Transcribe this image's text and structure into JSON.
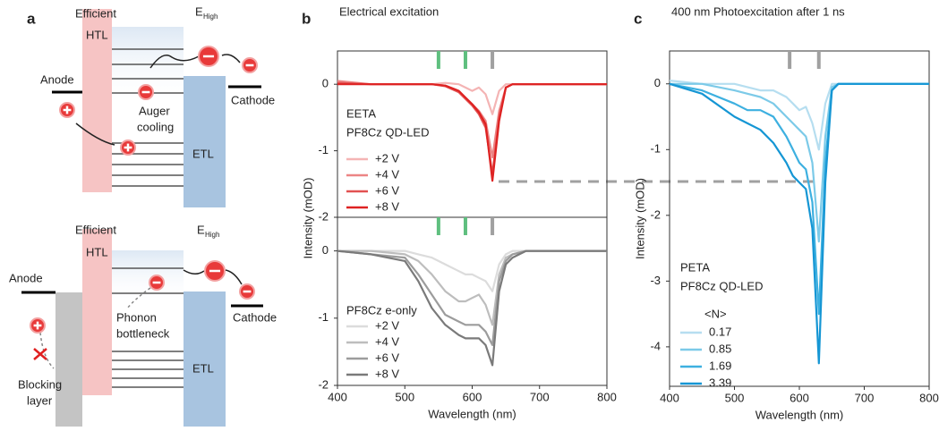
{
  "diagram": {
    "label": "a",
    "top": {
      "htl": [
        "Efficient",
        "HTL"
      ],
      "energy": "E",
      "energy_sub": "High",
      "anode": "Anode",
      "cathode": "Cathode",
      "process": [
        "Auger",
        "cooling"
      ],
      "etl": "ETL"
    },
    "bottom": {
      "htl": [
        "Efficient",
        "HTL"
      ],
      "energy": "E",
      "energy_sub": "High",
      "anode": "Anode",
      "cathode": "Cathode",
      "process": [
        "Phonon",
        "bottleneck"
      ],
      "etl": "ETL",
      "blocking": [
        "Blocking",
        "layer"
      ]
    }
  },
  "chart_data": [
    {
      "type": "line",
      "label": "b",
      "title": "Electrical excitation",
      "ylabel": "Intensity (mOD)",
      "annotation": [
        "EETA",
        "PF8Cz QD-LED"
      ],
      "x": [
        400,
        450,
        500,
        520,
        540,
        560,
        580,
        590,
        600,
        610,
        620,
        630,
        640,
        650,
        660,
        680,
        700,
        750,
        800
      ],
      "xlim": [
        400,
        800
      ],
      "ylim": [
        -2,
        0.5
      ],
      "yticks": [
        -2,
        -1,
        0
      ],
      "markers": [
        {
          "x": 550,
          "color": "#5fbf7f"
        },
        {
          "x": 590,
          "color": "#5fbf7f"
        },
        {
          "x": 630,
          "color": "#a0a0a0"
        }
      ],
      "series": [
        {
          "name": "+2 V",
          "color": "#f4b4b4",
          "values": [
            0.02,
            0,
            0,
            0,
            0,
            0.02,
            0,
            -0.05,
            -0.1,
            -0.05,
            -0.15,
            -0.45,
            -0.1,
            0,
            0,
            0,
            0,
            0,
            0
          ]
        },
        {
          "name": "+4 V",
          "color": "#ec8585",
          "values": [
            0.05,
            0,
            0,
            0,
            0,
            -0.02,
            -0.1,
            -0.2,
            -0.3,
            -0.4,
            -0.55,
            -1.1,
            -0.4,
            -0.05,
            0,
            0,
            0,
            0,
            0
          ]
        },
        {
          "name": "+6 V",
          "color": "#e25252",
          "values": [
            0.02,
            0,
            0,
            0,
            0,
            -0.03,
            -0.12,
            -0.22,
            -0.32,
            -0.45,
            -0.65,
            -1.35,
            -0.5,
            -0.05,
            0,
            0,
            0,
            0,
            0
          ]
        },
        {
          "name": "+8 V",
          "color": "#de2222",
          "values": [
            0,
            0,
            0,
            0,
            0,
            -0.02,
            -0.1,
            -0.2,
            -0.3,
            -0.42,
            -0.6,
            -1.45,
            -0.55,
            -0.05,
            0,
            0,
            0,
            0,
            0
          ]
        }
      ]
    },
    {
      "type": "line",
      "xlabel": "Wavelength (nm)",
      "annotation": [
        "PF8Cz e-only"
      ],
      "x": [
        400,
        450,
        500,
        520,
        540,
        560,
        580,
        590,
        600,
        610,
        620,
        630,
        640,
        650,
        660,
        680,
        700,
        750,
        800
      ],
      "xlim": [
        400,
        800
      ],
      "ylim": [
        -2,
        0.5
      ],
      "xticks": [
        400,
        500,
        600,
        700,
        800
      ],
      "yticks": [
        -2,
        -1,
        0
      ],
      "markers": [
        {
          "x": 550,
          "color": "#5fbf7f"
        },
        {
          "x": 590,
          "color": "#5fbf7f"
        },
        {
          "x": 630,
          "color": "#a0a0a0"
        }
      ],
      "series": [
        {
          "name": "+2 V",
          "color": "#dcdcdc",
          "values": [
            0,
            0,
            0,
            -0.05,
            -0.1,
            -0.2,
            -0.3,
            -0.35,
            -0.35,
            -0.4,
            -0.45,
            -0.6,
            -0.2,
            -0.05,
            0,
            0,
            0,
            0,
            0
          ]
        },
        {
          "name": "+4 V",
          "color": "#bdbdbd",
          "values": [
            0,
            0,
            -0.05,
            -0.15,
            -0.35,
            -0.6,
            -0.75,
            -0.75,
            -0.7,
            -0.65,
            -0.8,
            -1.1,
            -0.35,
            -0.1,
            -0.05,
            0,
            0,
            0,
            0
          ]
        },
        {
          "name": "+6 V",
          "color": "#9c9c9c",
          "values": [
            0,
            -0.05,
            -0.1,
            -0.35,
            -0.65,
            -0.95,
            -1.05,
            -1.1,
            -1.1,
            -1.1,
            -1.2,
            -1.4,
            -0.45,
            -0.15,
            -0.05,
            0,
            0,
            0,
            0
          ]
        },
        {
          "name": "+8 V",
          "color": "#7a7a7a",
          "values": [
            0,
            -0.05,
            -0.15,
            -0.45,
            -0.85,
            -1.1,
            -1.25,
            -1.3,
            -1.3,
            -1.3,
            -1.4,
            -1.7,
            -0.6,
            -0.2,
            -0.1,
            0,
            0,
            0,
            0
          ]
        }
      ]
    },
    {
      "type": "line",
      "label": "c",
      "title": "400 nm Photoexcitation after 1 ns",
      "xlabel": "Wavelength (nm)",
      "ylabel": "Intensity (mOD)",
      "annotation": [
        "PETA",
        "PF8Cz QD-LED"
      ],
      "legend_title": "<N>",
      "x": [
        400,
        450,
        500,
        520,
        540,
        560,
        580,
        590,
        600,
        610,
        620,
        630,
        640,
        650,
        660,
        680,
        700,
        750,
        800
      ],
      "xlim": [
        400,
        800
      ],
      "ylim": [
        -4.6,
        0.5
      ],
      "xticks": [
        400,
        500,
        600,
        700,
        800
      ],
      "yticks": [
        -4,
        -3,
        -2,
        -1,
        0
      ],
      "markers": [
        {
          "x": 585,
          "color": "#a0a0a0"
        },
        {
          "x": 630,
          "color": "#a0a0a0"
        }
      ],
      "series": [
        {
          "name": "0.17",
          "color": "#b6def0",
          "values": [
            0.05,
            0,
            0,
            -0.05,
            -0.1,
            -0.1,
            -0.2,
            -0.3,
            -0.4,
            -0.35,
            -0.6,
            -1.0,
            -0.3,
            0,
            0,
            0,
            0,
            0,
            0
          ]
        },
        {
          "name": "0.85",
          "color": "#7ccae8",
          "values": [
            0,
            0,
            -0.1,
            -0.15,
            -0.2,
            -0.3,
            -0.5,
            -0.6,
            -0.7,
            -0.8,
            -1.2,
            -2.4,
            -0.8,
            -0.05,
            0,
            0,
            0,
            0,
            0
          ]
        },
        {
          "name": "1.69",
          "color": "#3db0e0",
          "values": [
            0,
            -0.1,
            -0.3,
            -0.4,
            -0.4,
            -0.5,
            -0.8,
            -1.0,
            -1.2,
            -1.3,
            -1.8,
            -3.5,
            -1.2,
            -0.1,
            0,
            0,
            0,
            0,
            0
          ]
        },
        {
          "name": "3.39",
          "color": "#1596d4",
          "values": [
            0,
            -0.15,
            -0.5,
            -0.6,
            -0.7,
            -0.9,
            -1.2,
            -1.4,
            -1.5,
            -1.6,
            -2.2,
            -4.25,
            -1.5,
            -0.1,
            0,
            0,
            0,
            0,
            0
          ]
        }
      ]
    }
  ]
}
